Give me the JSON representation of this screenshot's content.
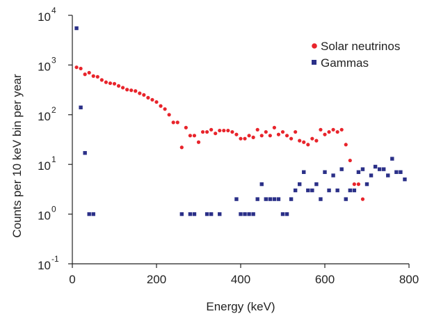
{
  "chart_data": {
    "type": "scatter",
    "title": "",
    "xlabel": "Energy (keV)",
    "ylabel": "Counts per 10 keV bin per year",
    "xlim": [
      0,
      800
    ],
    "ylim": [
      0.1,
      10000
    ],
    "yscale": "log",
    "grid": false,
    "legend_position": "top-right",
    "x_ticks": [
      "0",
      "200",
      "400",
      "600",
      "800"
    ],
    "y_ticks": [
      {
        "base": "10",
        "exp": "-1",
        "value": 0.1
      },
      {
        "base": "10",
        "exp": "0",
        "value": 1
      },
      {
        "base": "10",
        "exp": "1",
        "value": 10
      },
      {
        "base": "10",
        "exp": "2",
        "value": 100
      },
      {
        "base": "10",
        "exp": "3",
        "value": 1000
      },
      {
        "base": "10",
        "exp": "4",
        "value": 10000
      }
    ],
    "series": [
      {
        "name": "Solar neutrinos",
        "color": "#e8242b",
        "marker": "circle",
        "x": [
          10,
          20,
          30,
          40,
          50,
          60,
          70,
          80,
          90,
          100,
          110,
          120,
          130,
          140,
          150,
          160,
          170,
          180,
          190,
          200,
          210,
          220,
          230,
          240,
          250,
          260,
          270,
          280,
          290,
          300,
          310,
          320,
          330,
          340,
          350,
          360,
          370,
          380,
          390,
          400,
          410,
          420,
          430,
          440,
          450,
          460,
          470,
          480,
          490,
          500,
          510,
          520,
          530,
          540,
          550,
          560,
          570,
          580,
          590,
          600,
          610,
          620,
          630,
          640,
          650,
          660,
          670,
          680,
          690
        ],
        "y": [
          900,
          850,
          650,
          700,
          600,
          580,
          500,
          450,
          430,
          420,
          380,
          350,
          320,
          310,
          300,
          270,
          250,
          220,
          200,
          180,
          150,
          130,
          100,
          70,
          70,
          22,
          55,
          38,
          38,
          28,
          45,
          45,
          50,
          42,
          48,
          48,
          48,
          45,
          40,
          33,
          33,
          38,
          35,
          50,
          38,
          45,
          38,
          55,
          40,
          45,
          38,
          33,
          45,
          30,
          28,
          25,
          33,
          30,
          50,
          40,
          45,
          50,
          45,
          50,
          25,
          12,
          4,
          4,
          2
        ]
      },
      {
        "name": "Gammas",
        "color": "#2b3088",
        "marker": "square",
        "x": [
          10,
          20,
          30,
          40,
          50,
          260,
          280,
          290,
          320,
          330,
          350,
          390,
          400,
          410,
          420,
          430,
          440,
          450,
          460,
          470,
          480,
          490,
          500,
          510,
          520,
          530,
          540,
          550,
          560,
          570,
          580,
          590,
          600,
          610,
          620,
          630,
          640,
          650,
          660,
          670,
          680,
          690,
          700,
          710,
          720,
          730,
          740,
          750,
          760,
          770,
          780,
          790
        ],
        "y": [
          5500,
          140,
          17,
          1,
          1,
          1,
          1,
          1,
          1,
          1,
          1,
          2,
          1,
          1,
          1,
          1,
          2,
          4,
          2,
          2,
          2,
          2,
          1,
          1,
          2,
          3,
          4,
          7,
          3,
          3,
          4,
          2,
          7,
          3,
          6,
          3,
          8,
          2,
          3,
          3,
          7,
          8,
          4,
          6,
          9,
          8,
          8,
          6,
          13,
          7,
          7,
          5
        ]
      }
    ]
  }
}
